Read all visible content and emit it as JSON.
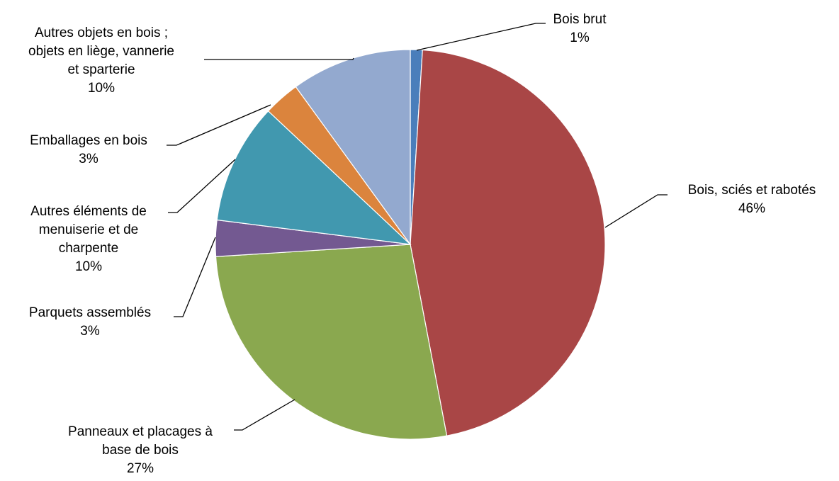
{
  "chart_data": {
    "type": "pie",
    "title": "",
    "slices": [
      {
        "label_lines": [
          "Bois brut"
        ],
        "percent_label": "1%",
        "value": 1,
        "color": "#4a7ebb"
      },
      {
        "label_lines": [
          "Bois, sciés et rabotés"
        ],
        "percent_label": "46%",
        "value": 46,
        "color": "#a94646"
      },
      {
        "label_lines": [
          "Panneaux et placages à",
          "base de bois"
        ],
        "percent_label": "27%",
        "value": 27,
        "color": "#8aa84f"
      },
      {
        "label_lines": [
          "Parquets assemblés"
        ],
        "percent_label": "3%",
        "value": 3,
        "color": "#735991"
      },
      {
        "label_lines": [
          "Autres éléments de",
          "menuiserie et de",
          "charpente"
        ],
        "percent_label": "10%",
        "value": 10,
        "color": "#4198af"
      },
      {
        "label_lines": [
          "Emballages en bois"
        ],
        "percent_label": "3%",
        "value": 3,
        "color": "#db843d"
      },
      {
        "label_lines": [
          "Autres objets en bois ;",
          "objets en liège, vannerie",
          "et sparterie"
        ],
        "percent_label": "10%",
        "value": 10,
        "color": "#93a9cf"
      }
    ],
    "legend": "none",
    "data_labels": "outside-with-leader-lines"
  }
}
